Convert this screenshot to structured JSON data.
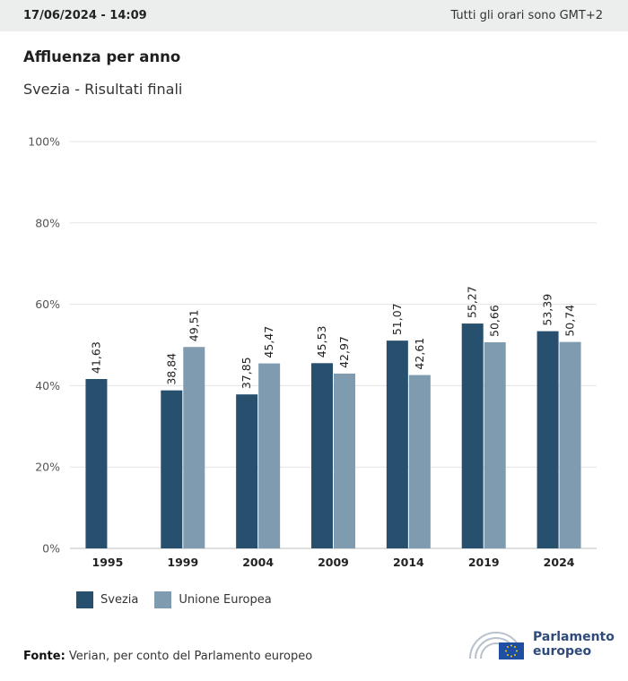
{
  "header": {
    "timestamp": "17/06/2024 - 14:09",
    "timezone_note": "Tutti gli orari sono GMT+2"
  },
  "title": "Affluenza per anno",
  "subtitle": "Svezia - Risultati finali",
  "colors": {
    "svezia": "#27506f",
    "ue": "#7f9bb0",
    "grid": "#e3e3e3"
  },
  "chart_data": {
    "type": "bar",
    "categories": [
      "1995",
      "1999",
      "2004",
      "2009",
      "2014",
      "2019",
      "2024"
    ],
    "series": [
      {
        "name": "Svezia",
        "values": [
          41.63,
          38.84,
          37.85,
          45.53,
          51.07,
          55.27,
          53.39
        ],
        "labels": [
          "41,63",
          "38,84",
          "37,85",
          "45,53",
          "51,07",
          "55,27",
          "53,39"
        ]
      },
      {
        "name": "Unione Europea",
        "values": [
          null,
          49.51,
          45.47,
          42.97,
          42.61,
          50.66,
          50.74
        ],
        "labels": [
          "",
          "49,51",
          "45,47",
          "42,97",
          "42,61",
          "50,66",
          "50,74"
        ]
      }
    ],
    "ylim": [
      0,
      100
    ],
    "yticks": [
      0,
      20,
      40,
      60,
      80,
      100
    ],
    "ytick_labels": [
      "0%",
      "20%",
      "40%",
      "60%",
      "80%",
      "100%"
    ],
    "grid": true,
    "legend": "bottom-left"
  },
  "legend": {
    "svezia": "Svezia",
    "ue": "Unione Europea"
  },
  "source": {
    "label": "Fonte:",
    "text": "Verian, per conto del Parlamento europeo"
  },
  "logo": {
    "line1": "Parlamento",
    "line2": "europeo"
  }
}
